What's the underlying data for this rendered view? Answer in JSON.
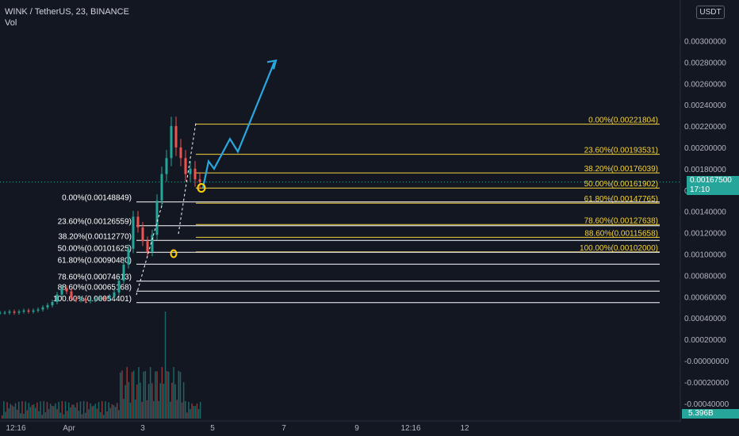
{
  "header": {
    "symbol_line": "WINK / TetherUS, 23, BINANCE",
    "volume_label": "Vol"
  },
  "currency_badge": "USDT",
  "last_price": {
    "value": "0.00167500",
    "countdown": "17:10"
  },
  "volume_value": "5.396B",
  "colors": {
    "background": "#131722",
    "up": "#26a69a",
    "down": "#ef5350",
    "fib_new": "#f5d33d",
    "fib_old": "#ffffff",
    "projection": "#2aa7df",
    "marker": "#ffd400"
  },
  "chart_data": {
    "type": "candlestick",
    "ylim": [
      -0.0004,
      0.0032
    ],
    "y_ticks": [
      "0.00300000",
      "0.00280000",
      "0.00260000",
      "0.00240000",
      "0.00220000",
      "0.00200000",
      "0.00180000",
      "0.00160000",
      "0.00140000",
      "0.00120000",
      "0.00100000",
      "0.00080000",
      "0.00060000",
      "0.00040000",
      "0.00020000",
      "-0.00000000",
      "-0.00020000",
      "-0.00040000"
    ],
    "x_ticks": [
      "12:16",
      "Apr",
      "3",
      "5",
      "7",
      "9",
      "12:16",
      "12"
    ],
    "fib_retracement_upper": [
      {
        "label": "0.00%(0.00221804)",
        "price": 0.00221804
      },
      {
        "label": "23.60%(0.00193531)",
        "price": 0.00193531
      },
      {
        "label": "38.20%(0.00176039)",
        "price": 0.00176039
      },
      {
        "label": "50.00%(0.00161902)",
        "price": 0.00161902
      },
      {
        "label": "61.80%(0.00147765)",
        "price": 0.00147765
      },
      {
        "label": "78.60%(0.00127638)",
        "price": 0.00127638
      },
      {
        "label": "88.60%(0.00115658)",
        "price": 0.00115658
      },
      {
        "label": "100.00%(0.00102000)",
        "price": 0.00102
      }
    ],
    "fib_retracement_lower": [
      {
        "label": "0.00%(0.00148849)",
        "price": 0.00148849
      },
      {
        "label": "23.60%(0.00126559)",
        "price": 0.00126559
      },
      {
        "label": "38.20%(0.00112770)",
        "price": 0.0011277
      },
      {
        "label": "50.00%(0.00101625)",
        "price": 0.00101625
      },
      {
        "label": "61.80%(0.00090480)",
        "price": 0.0009048
      },
      {
        "label": "78.60%(0.00074613)",
        "price": 0.00074613
      },
      {
        "label": "88.60%(0.00065168)",
        "price": 0.00065168
      },
      {
        "label": "100.00%(0.00054401)",
        "price": 0.00054401
      }
    ],
    "price_series": [
      0.00045,
      0.00045,
      0.00046,
      0.00045,
      0.00046,
      0.00047,
      0.00046,
      0.00047,
      0.00048,
      0.0005,
      0.00052,
      0.00055,
      0.00062,
      0.00068,
      0.00065,
      0.00058,
      0.00057,
      0.00058,
      0.00056,
      0.00057,
      0.00058,
      0.00059,
      0.00058,
      0.0006,
      0.00064,
      0.00075,
      0.0009,
      0.00105,
      0.00135,
      0.00125,
      0.00112,
      0.00102,
      0.00118,
      0.0015,
      0.00175,
      0.0019,
      0.0022,
      0.002,
      0.0019,
      0.00175,
      0.0018,
      0.0017,
      0.001675
    ],
    "projection_path": [
      [
        0.00162,
        0
      ],
      [
        0.00187,
        1
      ],
      [
        0.0018,
        2
      ],
      [
        0.00208,
        3
      ],
      [
        0.00196,
        4
      ],
      [
        0.0028,
        5
      ]
    ]
  }
}
